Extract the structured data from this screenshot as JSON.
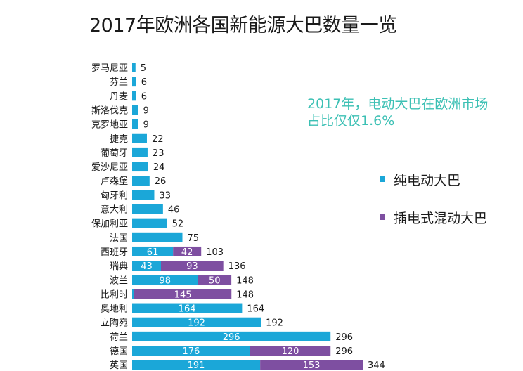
{
  "title": "2017年欧洲各国新能源大巴数量一览",
  "note": {
    "line1": "2017年，电动大巴在欧洲市场",
    "line2": "占比仅仅1.6%"
  },
  "colors": {
    "electric": "#1ba7d8",
    "plugin": "#7e4fa1",
    "note_text": "#3cc0b4"
  },
  "legend": [
    {
      "label": "纯电动大巴",
      "color_key": "electric"
    },
    {
      "label": "插电式混动大巴",
      "color_key": "plugin"
    }
  ],
  "chart_data": {
    "type": "bar",
    "orientation": "horizontal",
    "stacked": true,
    "title": "2017年欧洲各国新能源大巴数量一览",
    "categories": [
      "罗马尼亚",
      "芬兰",
      "丹麦",
      "斯洛伐克",
      "克罗地亚",
      "捷克",
      "葡萄牙",
      "爱沙尼亚",
      "卢森堡",
      "匈牙利",
      "意大利",
      "保加利亚",
      "法国",
      "西班牙",
      "瑞典",
      "波兰",
      "比利时",
      "奥地利",
      "立陶宛",
      "荷兰",
      "德国",
      "英国"
    ],
    "series": [
      {
        "name": "纯电动大巴",
        "values": [
          5,
          6,
          6,
          9,
          9,
          22,
          23,
          24,
          26,
          33,
          46,
          52,
          75,
          61,
          43,
          98,
          3,
          164,
          192,
          296,
          176,
          191
        ]
      },
      {
        "name": "插电式混动大巴",
        "values": [
          0,
          0,
          0,
          0,
          0,
          0,
          0,
          0,
          0,
          0,
          0,
          0,
          0,
          42,
          93,
          50,
          145,
          0,
          0,
          0,
          120,
          153
        ]
      }
    ],
    "segment_labels": [
      [
        null,
        null,
        null,
        null,
        null,
        null,
        null,
        null,
        null,
        null,
        null,
        null,
        null,
        "61",
        "43",
        "98",
        null,
        "164",
        "192",
        "296",
        "176",
        "191"
      ],
      [
        null,
        null,
        null,
        null,
        null,
        null,
        null,
        null,
        null,
        null,
        null,
        null,
        null,
        "42",
        "93",
        "50",
        "145",
        null,
        null,
        null,
        "120",
        "153"
      ]
    ],
    "totals": [
      5,
      6,
      6,
      9,
      9,
      22,
      23,
      24,
      26,
      33,
      46,
      52,
      75,
      103,
      136,
      148,
      148,
      164,
      192,
      296,
      296,
      344
    ],
    "grid": false,
    "legend_position": "right"
  }
}
